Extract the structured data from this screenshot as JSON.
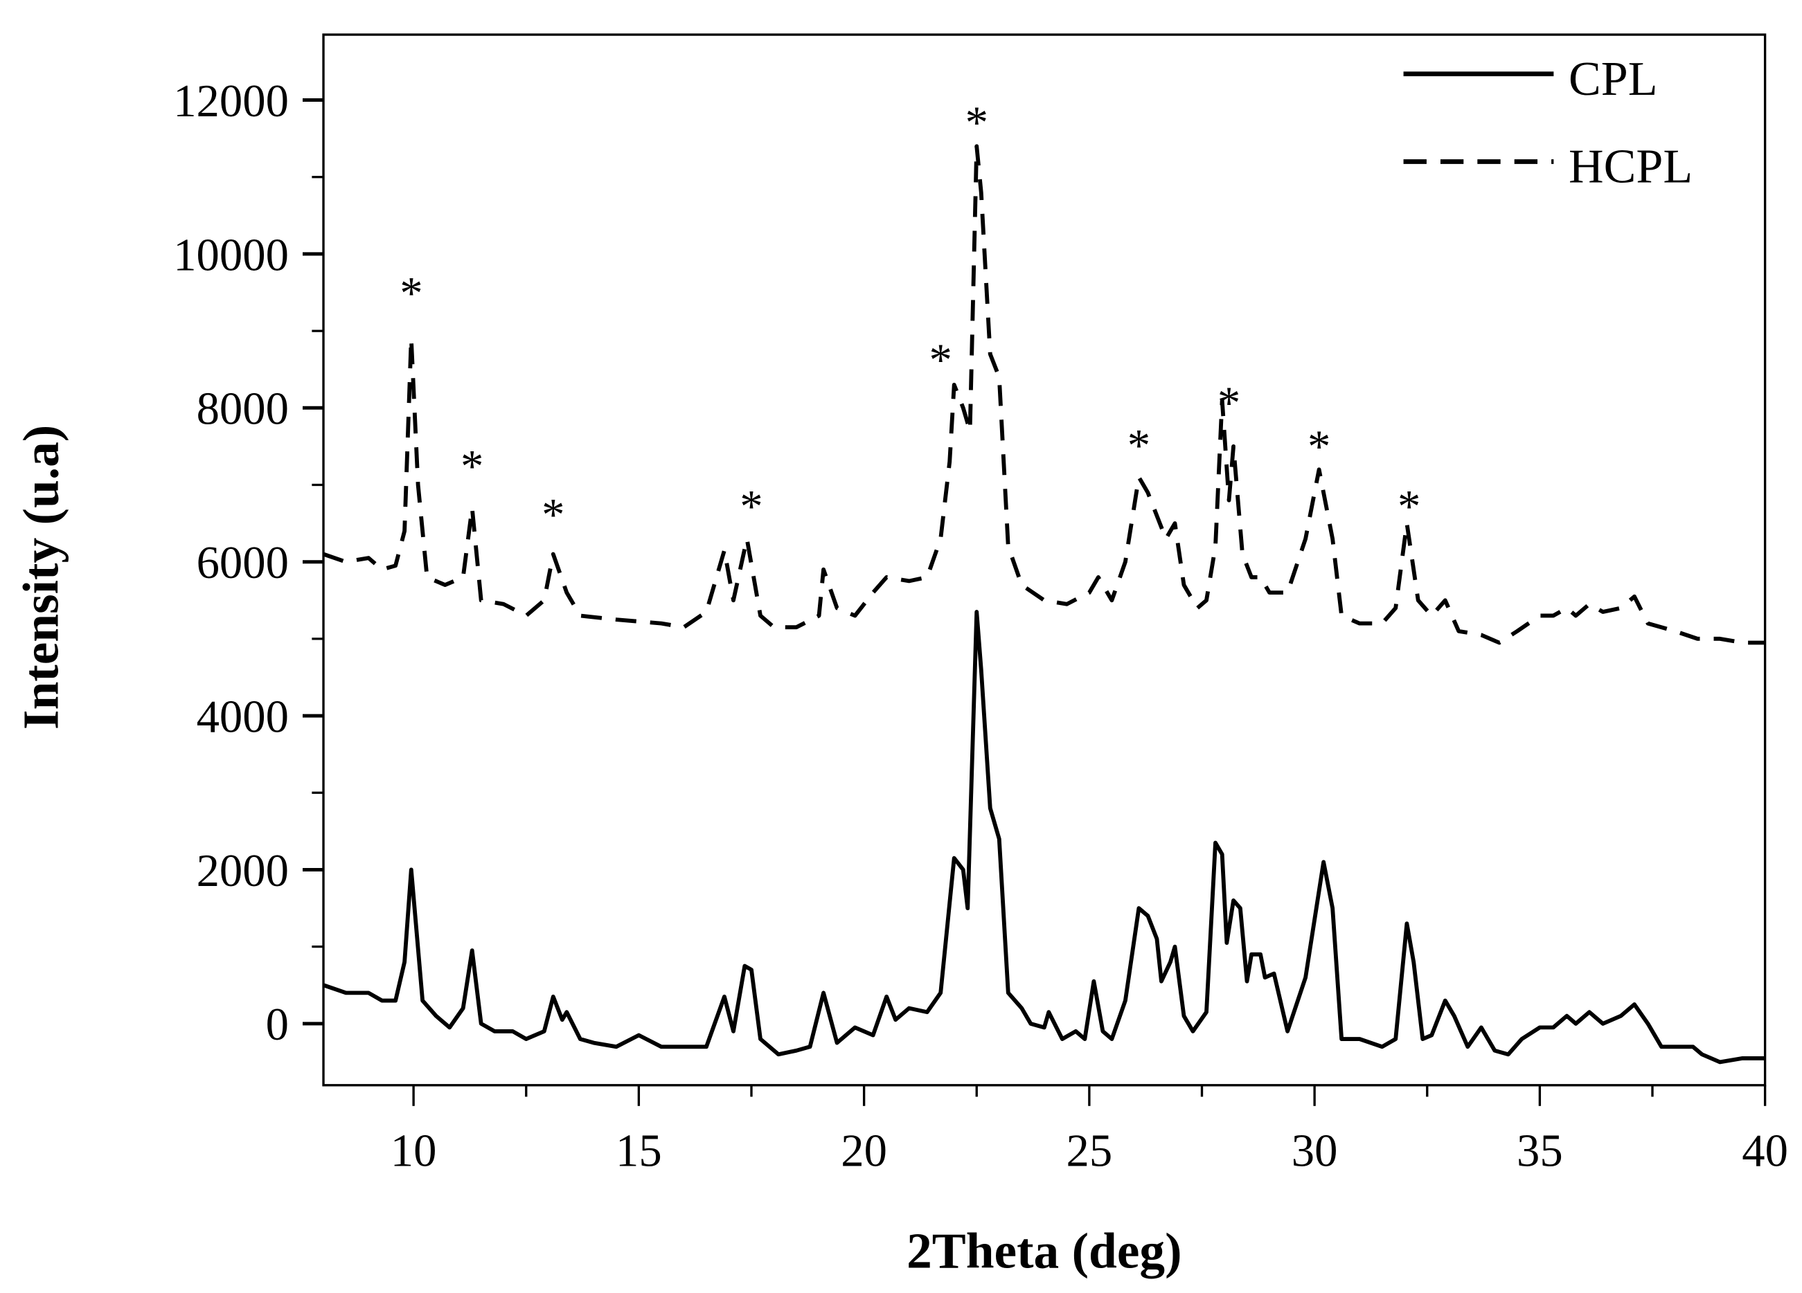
{
  "chart_data": {
    "type": "line",
    "title": "",
    "xlabel": "2Theta (deg)",
    "ylabel": "Intensity (u.a)",
    "xlim": [
      8,
      40
    ],
    "ylim": [
      -800,
      12850
    ],
    "xticks": [
      10,
      15,
      20,
      25,
      30,
      35,
      40
    ],
    "xtick_labels": [
      "10",
      "15",
      "20",
      "25",
      "30",
      "35",
      "40"
    ],
    "yticks": [
      0,
      2000,
      4000,
      6000,
      8000,
      10000,
      12000
    ],
    "ytick_labels": [
      "0",
      "2000",
      "4000",
      "6000",
      "8000",
      "10000",
      "12000"
    ],
    "grid": false,
    "legend_position": "top-right",
    "series": [
      {
        "name": "CPL",
        "style": "solid",
        "color": "#000000",
        "x": [
          8,
          8.5,
          9,
          9.3,
          9.6,
          9.8,
          9.95,
          10.2,
          10.5,
          10.8,
          11.1,
          11.3,
          11.5,
          11.8,
          12.2,
          12.5,
          12.9,
          13.1,
          13.3,
          13.4,
          13.7,
          14,
          14.5,
          15,
          15.5,
          16,
          16.5,
          16.9,
          17.1,
          17.35,
          17.5,
          17.7,
          18.1,
          18.5,
          18.8,
          19.1,
          19.4,
          19.8,
          20.2,
          20.5,
          20.7,
          21,
          21.4,
          21.7,
          22,
          22.2,
          22.3,
          22.5,
          22.6,
          22.8,
          23,
          23.2,
          23.5,
          23.7,
          24,
          24.1,
          24.4,
          24.7,
          24.9,
          25.1,
          25.3,
          25.5,
          25.8,
          26.1,
          26.3,
          26.5,
          26.6,
          26.8,
          26.9,
          27.1,
          27.3,
          27.6,
          27.8,
          27.95,
          28.05,
          28.2,
          28.35,
          28.5,
          28.6,
          28.8,
          28.9,
          29.1,
          29.4,
          29.8,
          30.2,
          30.4,
          30.6,
          31,
          31.5,
          31.8,
          32.05,
          32.2,
          32.4,
          32.6,
          32.9,
          33.1,
          33.4,
          33.7,
          34,
          34.3,
          34.6,
          35,
          35.3,
          35.6,
          35.8,
          36.1,
          36.4,
          36.8,
          37.1,
          37.4,
          37.7,
          38,
          38.4,
          38.6,
          39,
          39.5,
          40
        ],
        "y": [
          500,
          400,
          400,
          300,
          300,
          800,
          2000,
          300,
          100,
          -50,
          200,
          950,
          0,
          -100,
          -100,
          -200,
          -100,
          350,
          50,
          150,
          -200,
          -250,
          -300,
          -150,
          -300,
          -300,
          -300,
          350,
          -100,
          750,
          700,
          -200,
          -400,
          -350,
          -300,
          400,
          -250,
          -50,
          -150,
          350,
          50,
          200,
          150,
          400,
          2150,
          2000,
          1500,
          5350,
          4600,
          2800,
          2400,
          400,
          200,
          0,
          -50,
          150,
          -200,
          -100,
          -200,
          550,
          -100,
          -200,
          300,
          1500,
          1400,
          1100,
          550,
          800,
          1000,
          100,
          -100,
          150,
          2350,
          2200,
          1050,
          1600,
          1500,
          550,
          900,
          900,
          600,
          650,
          -100,
          600,
          2100,
          1500,
          -200,
          -200,
          -300,
          -200,
          1300,
          800,
          -200,
          -150,
          300,
          100,
          -300,
          -50,
          -350,
          -400,
          -200,
          -50,
          -50,
          100,
          0,
          150,
          0,
          100,
          250,
          0,
          -300,
          -300,
          -300,
          -400,
          -500,
          -450,
          -450
        ]
      },
      {
        "name": "HCPL",
        "style": "dashed",
        "color": "#000000",
        "x": [
          8,
          8.5,
          9,
          9.3,
          9.6,
          9.8,
          9.95,
          10.1,
          10.3,
          10.7,
          11.1,
          11.3,
          11.5,
          12,
          12.5,
          12.9,
          13.1,
          13.4,
          13.7,
          14.5,
          15.5,
          16,
          16.5,
          16.9,
          17.1,
          17.4,
          17.7,
          18,
          18.5,
          19,
          19.1,
          19.4,
          19.8,
          20.2,
          20.5,
          21,
          21.4,
          21.7,
          21.9,
          22,
          22.2,
          22.35,
          22.5,
          22.6,
          22.8,
          23,
          23.2,
          23.5,
          24,
          24.5,
          25,
          25.2,
          25.5,
          25.8,
          26.1,
          26.3,
          26.5,
          26.7,
          26.9,
          27.1,
          27.4,
          27.6,
          27.8,
          27.95,
          28.1,
          28.2,
          28.4,
          28.6,
          28.8,
          29,
          29.4,
          29.8,
          30.1,
          30.4,
          30.6,
          31,
          31.5,
          31.8,
          32.05,
          32.3,
          32.6,
          32.9,
          33.2,
          33.7,
          34.1,
          34.5,
          35,
          35.3,
          35.6,
          35.8,
          36.1,
          36.4,
          36.8,
          37.1,
          37.4,
          38,
          38.5,
          39,
          39.5,
          40
        ],
        "y": [
          6100,
          6000,
          6050,
          5900,
          5950,
          6400,
          8900,
          7000,
          5800,
          5700,
          5800,
          6700,
          5500,
          5450,
          5300,
          5500,
          6100,
          5600,
          5300,
          5250,
          5200,
          5150,
          5350,
          6150,
          5500,
          6300,
          5300,
          5150,
          5150,
          5300,
          5900,
          5400,
          5300,
          5600,
          5800,
          5750,
          5800,
          6300,
          7300,
          8300,
          8000,
          7700,
          11400,
          10800,
          8700,
          8400,
          6200,
          5700,
          5500,
          5450,
          5600,
          5800,
          5500,
          6000,
          7100,
          6900,
          6600,
          6300,
          6500,
          5700,
          5400,
          5500,
          6200,
          8100,
          6800,
          7500,
          6100,
          5800,
          5800,
          5600,
          5600,
          6300,
          7200,
          6300,
          5300,
          5200,
          5200,
          5400,
          6500,
          5500,
          5300,
          5500,
          5100,
          5050,
          4950,
          5100,
          5300,
          5300,
          5400,
          5300,
          5450,
          5350,
          5400,
          5550,
          5200,
          5100,
          5000,
          5000,
          4950,
          4950
        ]
      }
    ],
    "annotations": {
      "label": "*",
      "points": [
        [
          9.95,
          9620
        ],
        [
          11.3,
          7370
        ],
        [
          13.1,
          6740
        ],
        [
          17.5,
          6850
        ],
        [
          21.7,
          8750
        ],
        [
          22.5,
          11835
        ],
        [
          26.1,
          7640
        ],
        [
          28.1,
          8195
        ],
        [
          30.1,
          7625
        ],
        [
          32.1,
          6850
        ]
      ]
    }
  }
}
